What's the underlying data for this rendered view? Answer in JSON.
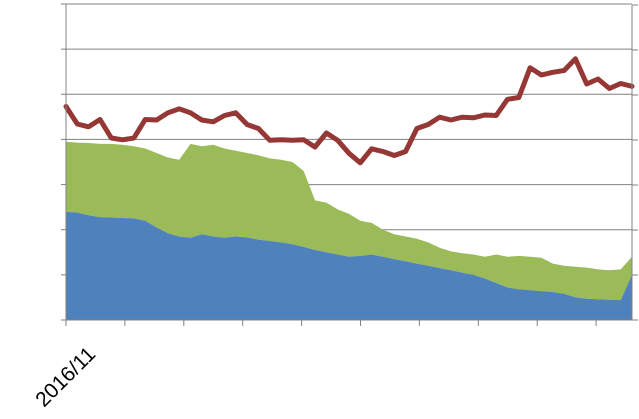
{
  "chart_data": {
    "type": "area",
    "x_tick_labels": [
      "2016/11"
    ],
    "grid": "horizontal",
    "legend": "none",
    "left_axis_range": [
      0,
      7
    ],
    "right_axis_range": [
      0,
      7
    ],
    "colors": {
      "blue": "#4f81bd",
      "green": "#9bbb59",
      "red": "#953735",
      "grid": "#808080"
    },
    "x": [
      0,
      2,
      4,
      6,
      8,
      10,
      12,
      14,
      16,
      18,
      20,
      22,
      24,
      26,
      28,
      30,
      32,
      34,
      36,
      38,
      40,
      42,
      44,
      46,
      48,
      50,
      52,
      54,
      56,
      58,
      60,
      62,
      64,
      66,
      68,
      70,
      72,
      74,
      76,
      78,
      80,
      82,
      84,
      86,
      88,
      90,
      92,
      94,
      96,
      98,
      100
    ],
    "series": [
      {
        "name": "",
        "type": "area",
        "axis": "left",
        "color": "#4f81bd",
        "values": [
          2.4,
          2.38,
          2.32,
          2.28,
          2.27,
          2.26,
          2.25,
          2.2,
          2.05,
          1.92,
          1.85,
          1.82,
          1.9,
          1.85,
          1.82,
          1.85,
          1.83,
          1.78,
          1.75,
          1.72,
          1.68,
          1.62,
          1.55,
          1.5,
          1.45,
          1.4,
          1.42,
          1.45,
          1.4,
          1.35,
          1.3,
          1.25,
          1.2,
          1.15,
          1.1,
          1.05,
          1.0,
          0.92,
          0.82,
          0.72,
          0.68,
          0.66,
          0.64,
          0.62,
          0.58,
          0.5,
          0.47,
          0.46,
          0.45,
          0.44,
          1.0
        ]
      },
      {
        "name": "",
        "type": "area",
        "axis": "left",
        "color": "#9bbb59",
        "values": [
          3.95,
          3.93,
          3.92,
          3.9,
          3.9,
          3.88,
          3.85,
          3.8,
          3.7,
          3.6,
          3.55,
          3.9,
          3.85,
          3.88,
          3.8,
          3.75,
          3.7,
          3.65,
          3.58,
          3.55,
          3.5,
          3.3,
          2.65,
          2.6,
          2.45,
          2.35,
          2.2,
          2.15,
          2.0,
          1.9,
          1.85,
          1.8,
          1.72,
          1.6,
          1.52,
          1.48,
          1.45,
          1.4,
          1.45,
          1.4,
          1.42,
          1.4,
          1.38,
          1.25,
          1.2,
          1.18,
          1.16,
          1.12,
          1.1,
          1.12,
          1.4
        ]
      },
      {
        "name": "",
        "type": "line",
        "axis": "right",
        "color": "#953735",
        "values": [
          4.8,
          4.3,
          4.35,
          4.4,
          4.1,
          3.95,
          4.1,
          4.4,
          4.5,
          4.55,
          4.75,
          4.55,
          4.5,
          4.35,
          4.6,
          4.55,
          4.4,
          4.2,
          4.05,
          3.95,
          4.05,
          3.95,
          3.9,
          4.1,
          4.05,
          3.65,
          3.55,
          3.75,
          3.8,
          3.6,
          3.8,
          4.2,
          4.4,
          4.45,
          4.5,
          4.45,
          4.55,
          4.5,
          4.6,
          4.85,
          5.0,
          5.55,
          5.5,
          5.45,
          5.6,
          5.75,
          5.3,
          5.3,
          5.2,
          5.2,
          5.25
        ]
      }
    ]
  }
}
